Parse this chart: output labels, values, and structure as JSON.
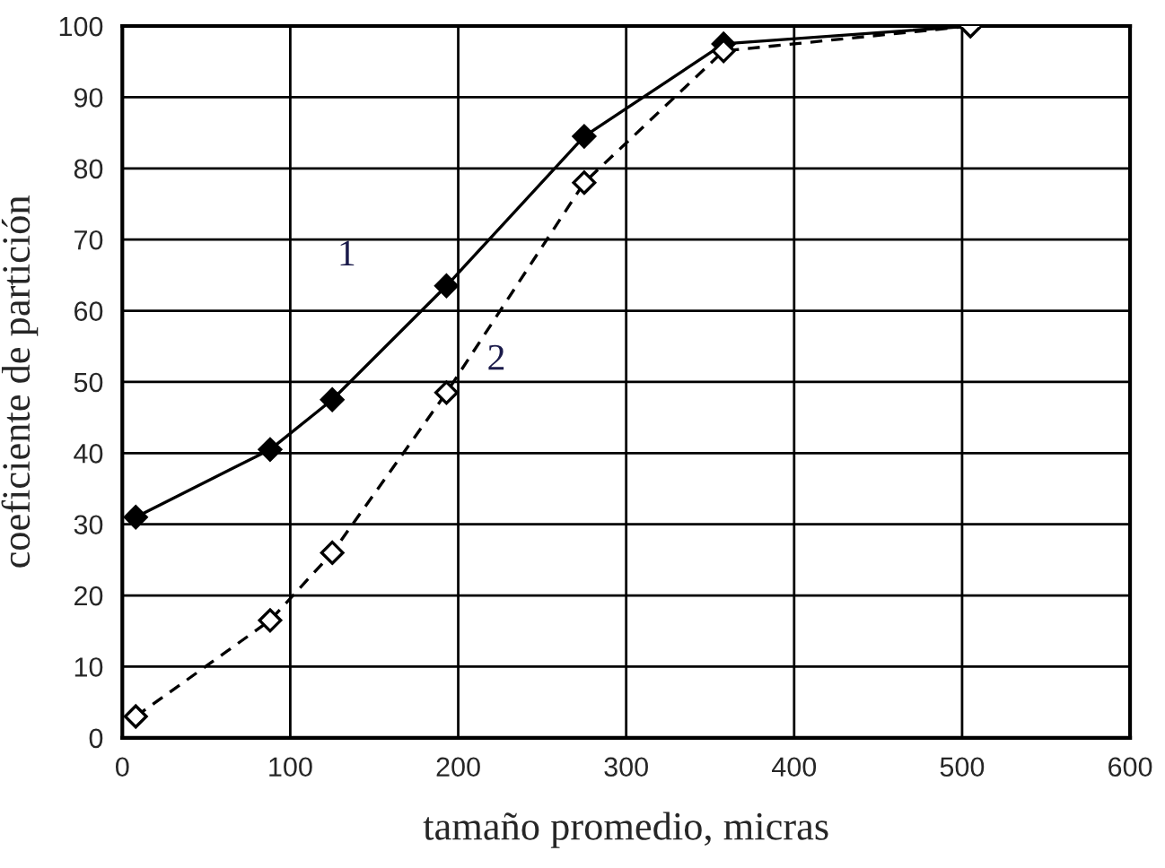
{
  "chart_data": {
    "type": "line",
    "xlabel": "tamaño promedio, micras",
    "ylabel": "coeficiente de partición",
    "x": [
      8,
      88,
      125,
      193,
      275,
      358,
      505
    ],
    "series": [
      {
        "name": "1",
        "color": "#000000",
        "line_style": "solid",
        "marker": "diamond",
        "values": [
          31,
          40.5,
          47.5,
          63.5,
          84.5,
          97.5,
          100
        ]
      },
      {
        "name": "2",
        "color": "#000000",
        "line_style": "dashed",
        "marker": "diamond",
        "values": [
          3,
          16.5,
          26,
          48.5,
          78,
          96.5,
          100
        ]
      }
    ],
    "xlim": [
      0,
      600
    ],
    "xticks": [
      0,
      100,
      200,
      300,
      400,
      500,
      600
    ],
    "ylim": [
      0,
      100
    ],
    "yticks": [
      0,
      10,
      20,
      30,
      40,
      50,
      60,
      70,
      80,
      90,
      100
    ],
    "grid": true,
    "legend": false
  }
}
